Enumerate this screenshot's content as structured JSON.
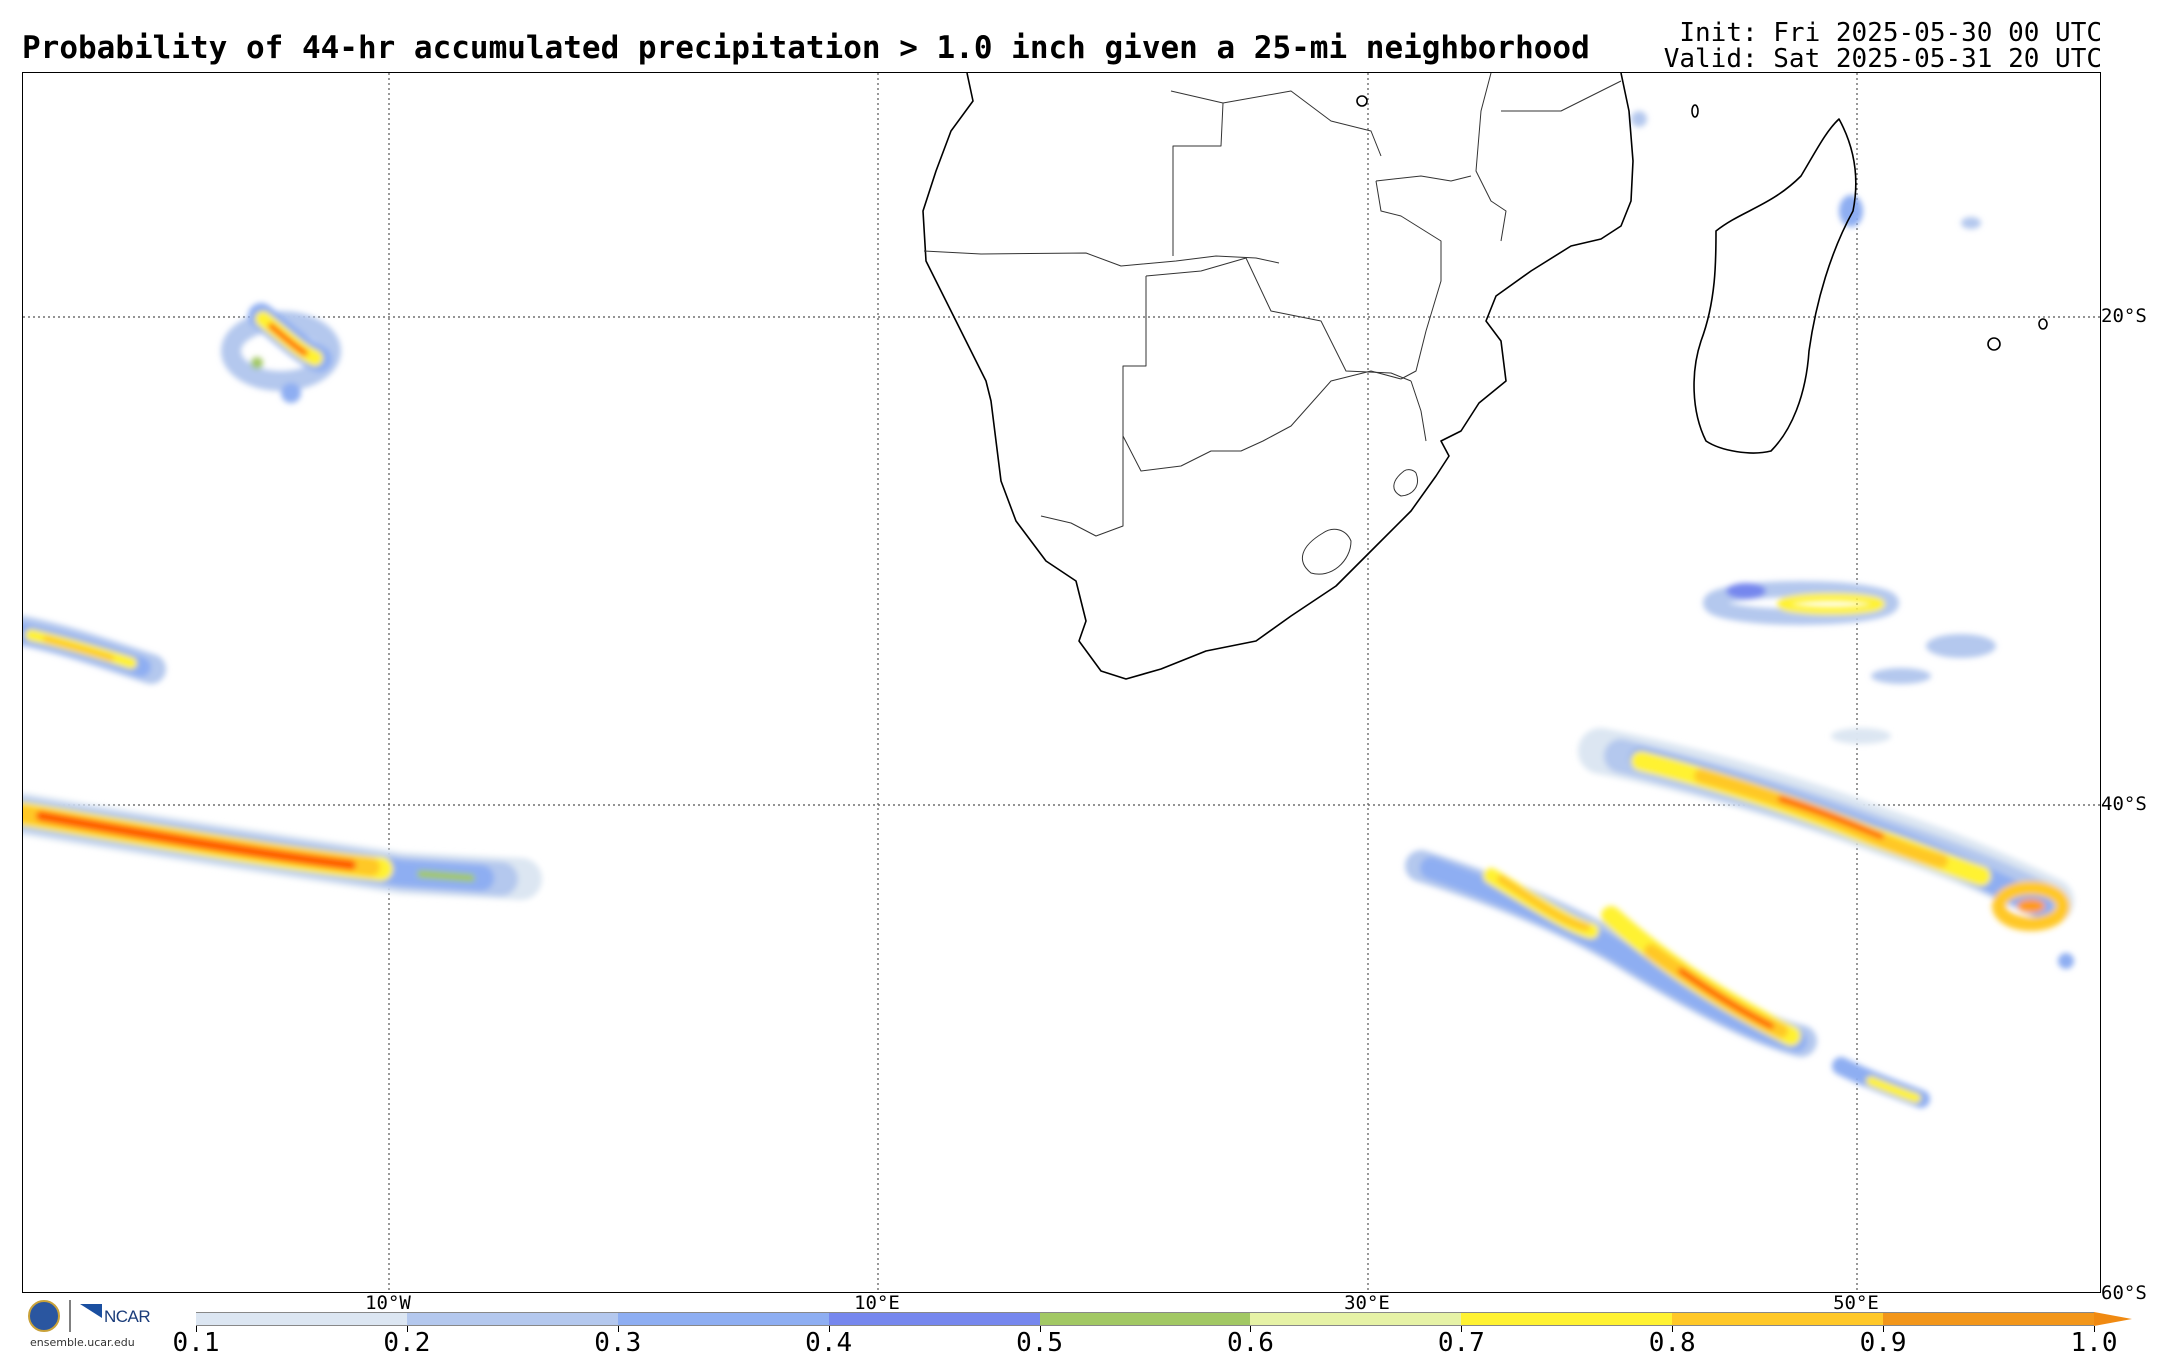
{
  "header": {
    "title": "Probability of 44-hr accumulated precipitation > 1.0 inch given a 25-mi neighborhood",
    "init": "Init: Fri 2025-05-30 00 UTC",
    "valid": "Valid: Sat 2025-05-31 20 UTC"
  },
  "map": {
    "projection": "equirectangular",
    "lon_range": [
      -25,
      60
    ],
    "lat_range": [
      -60,
      -10
    ],
    "lon_labels": [
      "10°W",
      "10°E",
      "30°E",
      "50°E"
    ],
    "lat_labels": [
      "20°S",
      "40°S",
      "60°S"
    ],
    "grid": "dotted"
  },
  "colorbar": {
    "labels": [
      "0.1",
      "0.2",
      "0.3",
      "0.4",
      "0.5",
      "0.6",
      "0.7",
      "0.8",
      "0.9",
      "1.0"
    ],
    "colors": [
      "#dce6f2",
      "#b4c8ee",
      "#8eaef2",
      "#7687ee",
      "#a2c864",
      "#e6f2a6",
      "#fff232",
      "#ffc828",
      "#f2961a"
    ],
    "arrow_color": "#f08a12"
  },
  "logos": {
    "org1": "NSF",
    "org2": "NCAR",
    "url": "ensemble.ucar.edu"
  }
}
